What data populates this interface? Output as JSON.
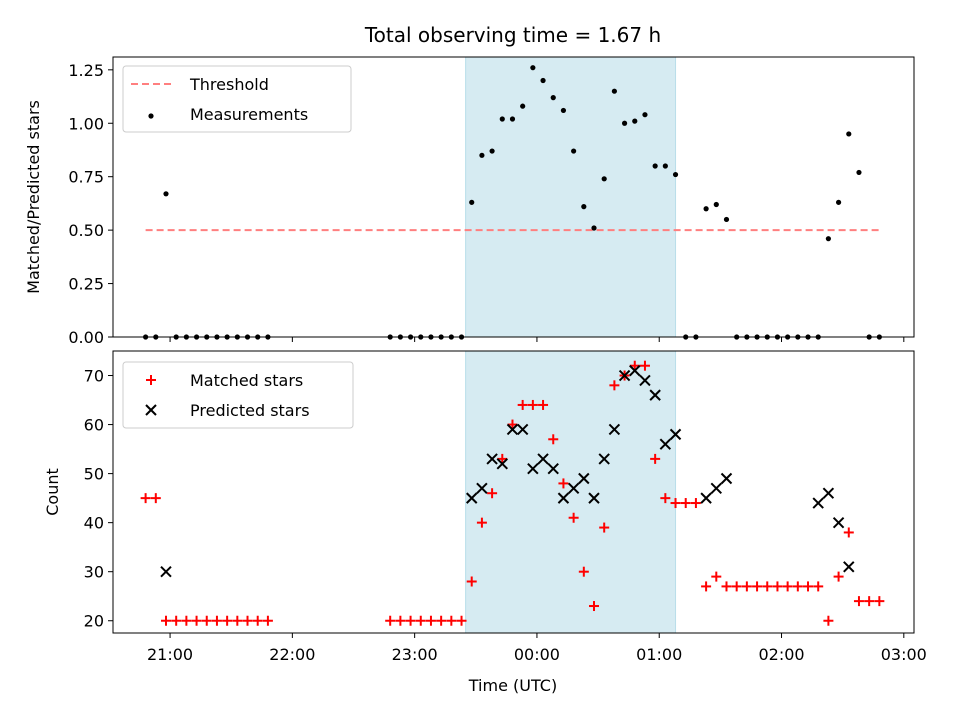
{
  "figure": {
    "title": "Total observing time = 1.67 h",
    "xlabel": "Time (UTC)",
    "x_ticks": [
      "21:00",
      "22:00",
      "23:00",
      "00:00",
      "01:00",
      "02:00",
      "03:00"
    ],
    "x_tick_hours": [
      21,
      22,
      23,
      24,
      25,
      26,
      27
    ],
    "xlim": [
      "20:32",
      "03:05"
    ],
    "shaded_span": [
      "23:25",
      "01:08"
    ],
    "shade_color": "#add8e6"
  },
  "chart_data": [
    {
      "type": "scatter",
      "ylabel": "Matched/Predicted stars",
      "ylim": [
        0,
        1.31
      ],
      "y_ticks": [
        "0.00",
        "0.25",
        "0.50",
        "0.75",
        "1.00",
        "1.25"
      ],
      "y_tick_values": [
        0,
        0.25,
        0.5,
        0.75,
        1.0,
        1.25
      ],
      "legend_position": "top-left",
      "threshold": {
        "name": "Threshold",
        "value": 0.5,
        "x_range": [
          "20:48",
          "02:48"
        ],
        "color": "#ff7f7f"
      },
      "series": [
        {
          "name": "Measurements",
          "color": "#000000",
          "x": [
            "20:48",
            "20:53",
            "20:58",
            "21:03",
            "21:08",
            "21:13",
            "21:18",
            "21:23",
            "21:28",
            "21:33",
            "21:38",
            "21:43",
            "21:48",
            "22:48",
            "22:53",
            "22:58",
            "23:03",
            "23:08",
            "23:13",
            "23:18",
            "23:23",
            "23:28",
            "23:33",
            "23:38",
            "23:43",
            "23:48",
            "23:53",
            "23:58",
            "00:03",
            "00:08",
            "00:13",
            "00:18",
            "00:23",
            "00:28",
            "00:33",
            "00:38",
            "00:43",
            "00:48",
            "00:53",
            "00:58",
            "01:03",
            "01:08",
            "01:13",
            "01:18",
            "01:23",
            "01:28",
            "01:33",
            "01:38",
            "01:43",
            "01:48",
            "01:53",
            "01:58",
            "02:03",
            "02:08",
            "02:13",
            "02:18",
            "02:23",
            "02:28",
            "02:33",
            "02:38",
            "02:43",
            "02:48"
          ],
          "y": [
            0,
            0,
            0.67,
            0,
            0,
            0,
            0,
            0,
            0,
            0,
            0,
            0,
            0,
            0,
            0,
            0,
            0,
            0,
            0,
            0,
            0,
            0.63,
            0.85,
            0.87,
            1.02,
            1.02,
            1.08,
            1.26,
            1.2,
            1.12,
            1.06,
            0.87,
            0.61,
            0.51,
            0.74,
            1.15,
            1.0,
            1.01,
            1.04,
            0.8,
            0.8,
            0.76,
            0,
            0,
            0.6,
            0.62,
            0.55,
            0,
            0,
            0,
            0,
            0,
            0,
            0,
            0,
            0,
            0.46,
            0.63,
            0.95,
            0.77,
            0,
            0
          ]
        }
      ]
    },
    {
      "type": "scatter",
      "ylabel": "Count",
      "ylim": [
        17.5,
        75
      ],
      "y_ticks": [
        "20",
        "30",
        "40",
        "50",
        "60",
        "70"
      ],
      "y_tick_values": [
        20,
        30,
        40,
        50,
        60,
        70
      ],
      "legend_position": "top-left",
      "series": [
        {
          "name": "Matched stars",
          "marker": "+",
          "color": "#ff0000",
          "x": [
            "20:48",
            "20:53",
            "20:58",
            "21:03",
            "21:08",
            "21:13",
            "21:18",
            "21:23",
            "21:28",
            "21:33",
            "21:38",
            "21:43",
            "21:48",
            "22:48",
            "22:53",
            "22:58",
            "23:03",
            "23:08",
            "23:13",
            "23:18",
            "23:23",
            "23:28",
            "23:33",
            "23:38",
            "23:43",
            "23:48",
            "23:53",
            "23:58",
            "00:03",
            "00:08",
            "00:13",
            "00:18",
            "00:23",
            "00:28",
            "00:33",
            "00:38",
            "00:43",
            "00:48",
            "00:53",
            "00:58",
            "01:03",
            "01:08",
            "01:13",
            "01:18",
            "01:23",
            "01:28",
            "01:33",
            "01:38",
            "01:43",
            "01:48",
            "01:53",
            "01:58",
            "02:03",
            "02:08",
            "02:13",
            "02:18",
            "02:23",
            "02:28",
            "02:33",
            "02:38",
            "02:43",
            "02:48"
          ],
          "y": [
            45,
            45,
            20,
            20,
            20,
            20,
            20,
            20,
            20,
            20,
            20,
            20,
            20,
            20,
            20,
            20,
            20,
            20,
            20,
            20,
            20,
            28,
            40,
            46,
            53,
            60,
            64,
            64,
            64,
            57,
            48,
            41,
            30,
            23,
            39,
            68,
            70,
            72,
            72,
            53,
            45,
            44,
            44,
            44,
            27,
            29,
            27,
            27,
            27,
            27,
            27,
            27,
            27,
            27,
            27,
            27,
            20,
            29,
            38,
            24,
            24,
            24
          ]
        },
        {
          "name": "Predicted stars",
          "marker": "x",
          "color": "#000000",
          "x": [
            "20:58",
            "23:28",
            "23:33",
            "23:38",
            "23:43",
            "23:48",
            "23:53",
            "23:58",
            "00:03",
            "00:08",
            "00:13",
            "00:18",
            "00:23",
            "00:28",
            "00:33",
            "00:38",
            "00:43",
            "00:48",
            "00:53",
            "00:58",
            "01:03",
            "01:08",
            "01:23",
            "01:28",
            "01:33",
            "02:18",
            "02:23",
            "02:28",
            "02:33"
          ],
          "y": [
            30,
            45,
            47,
            53,
            52,
            59,
            59,
            51,
            53,
            51,
            45,
            47,
            49,
            45,
            53,
            59,
            70,
            71,
            69,
            66,
            56,
            58,
            45,
            47,
            49,
            44,
            46,
            40,
            31
          ]
        }
      ]
    }
  ]
}
